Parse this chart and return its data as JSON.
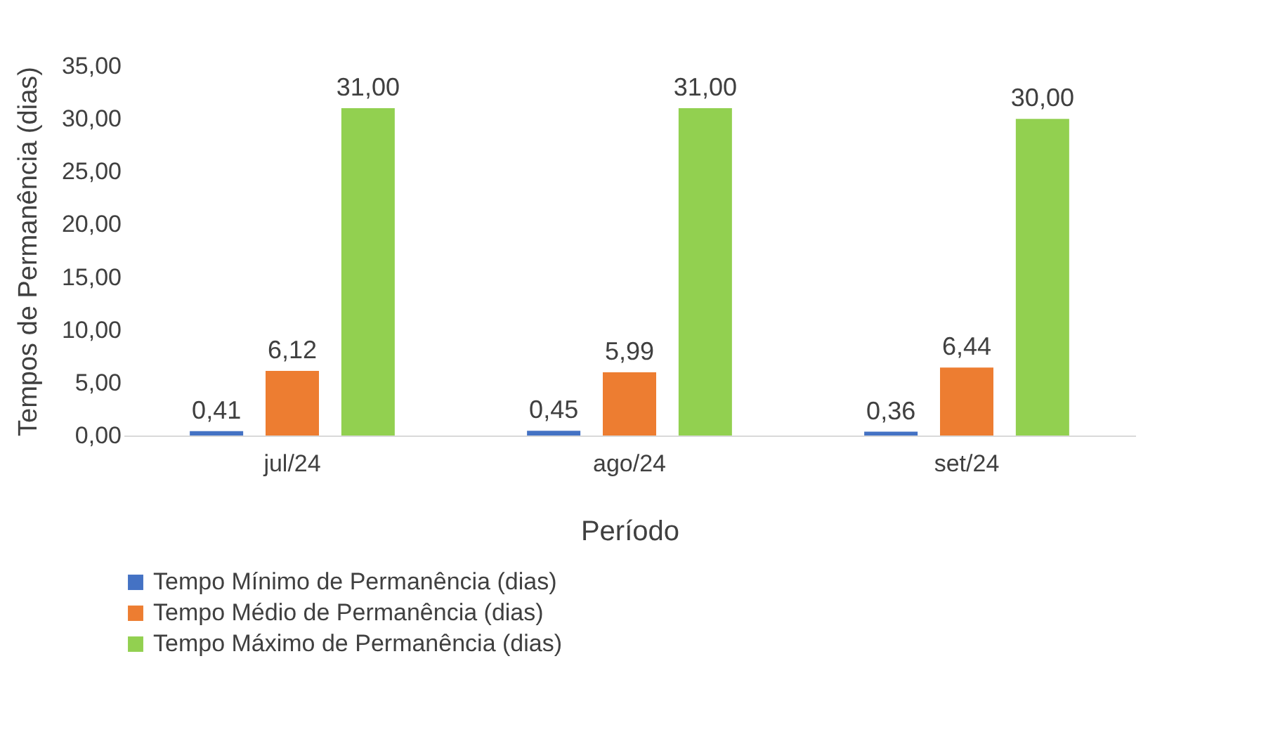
{
  "chart_data": {
    "type": "bar",
    "xlabel": "Período",
    "ylabel": "Tempos de Permanência (dias)",
    "categories": [
      "jul/24",
      "ago/24",
      "set/24"
    ],
    "series": [
      {
        "name": "Tempo Mínimo de Permanência (dias)",
        "color": "#4472c4",
        "values": [
          0.41,
          0.45,
          0.36
        ],
        "value_labels": [
          "0,41",
          "0,45",
          "0,36"
        ]
      },
      {
        "name": "Tempo Médio de Permanência (dias)",
        "color": "#ed7d31",
        "values": [
          6.12,
          5.99,
          6.44
        ],
        "value_labels": [
          "6,12",
          "5,99",
          "6,44"
        ]
      },
      {
        "name": "Tempo Máximo de Permanência (dias)",
        "color": "#92d050",
        "values": [
          31,
          31,
          30
        ],
        "value_labels": [
          "31,00",
          "31,00",
          "30,00"
        ]
      }
    ],
    "ylim": [
      0,
      35
    ],
    "yticks": [
      {
        "value": 0,
        "label": "0,00"
      },
      {
        "value": 5,
        "label": "5,00"
      },
      {
        "value": 10,
        "label": "10,00"
      },
      {
        "value": 15,
        "label": "15,00"
      },
      {
        "value": 20,
        "label": "20,00"
      },
      {
        "value": 25,
        "label": "25,00"
      },
      {
        "value": 30,
        "label": "30,00"
      },
      {
        "value": 35,
        "label": "35,00"
      }
    ],
    "grid": false,
    "legend": "bottom"
  }
}
